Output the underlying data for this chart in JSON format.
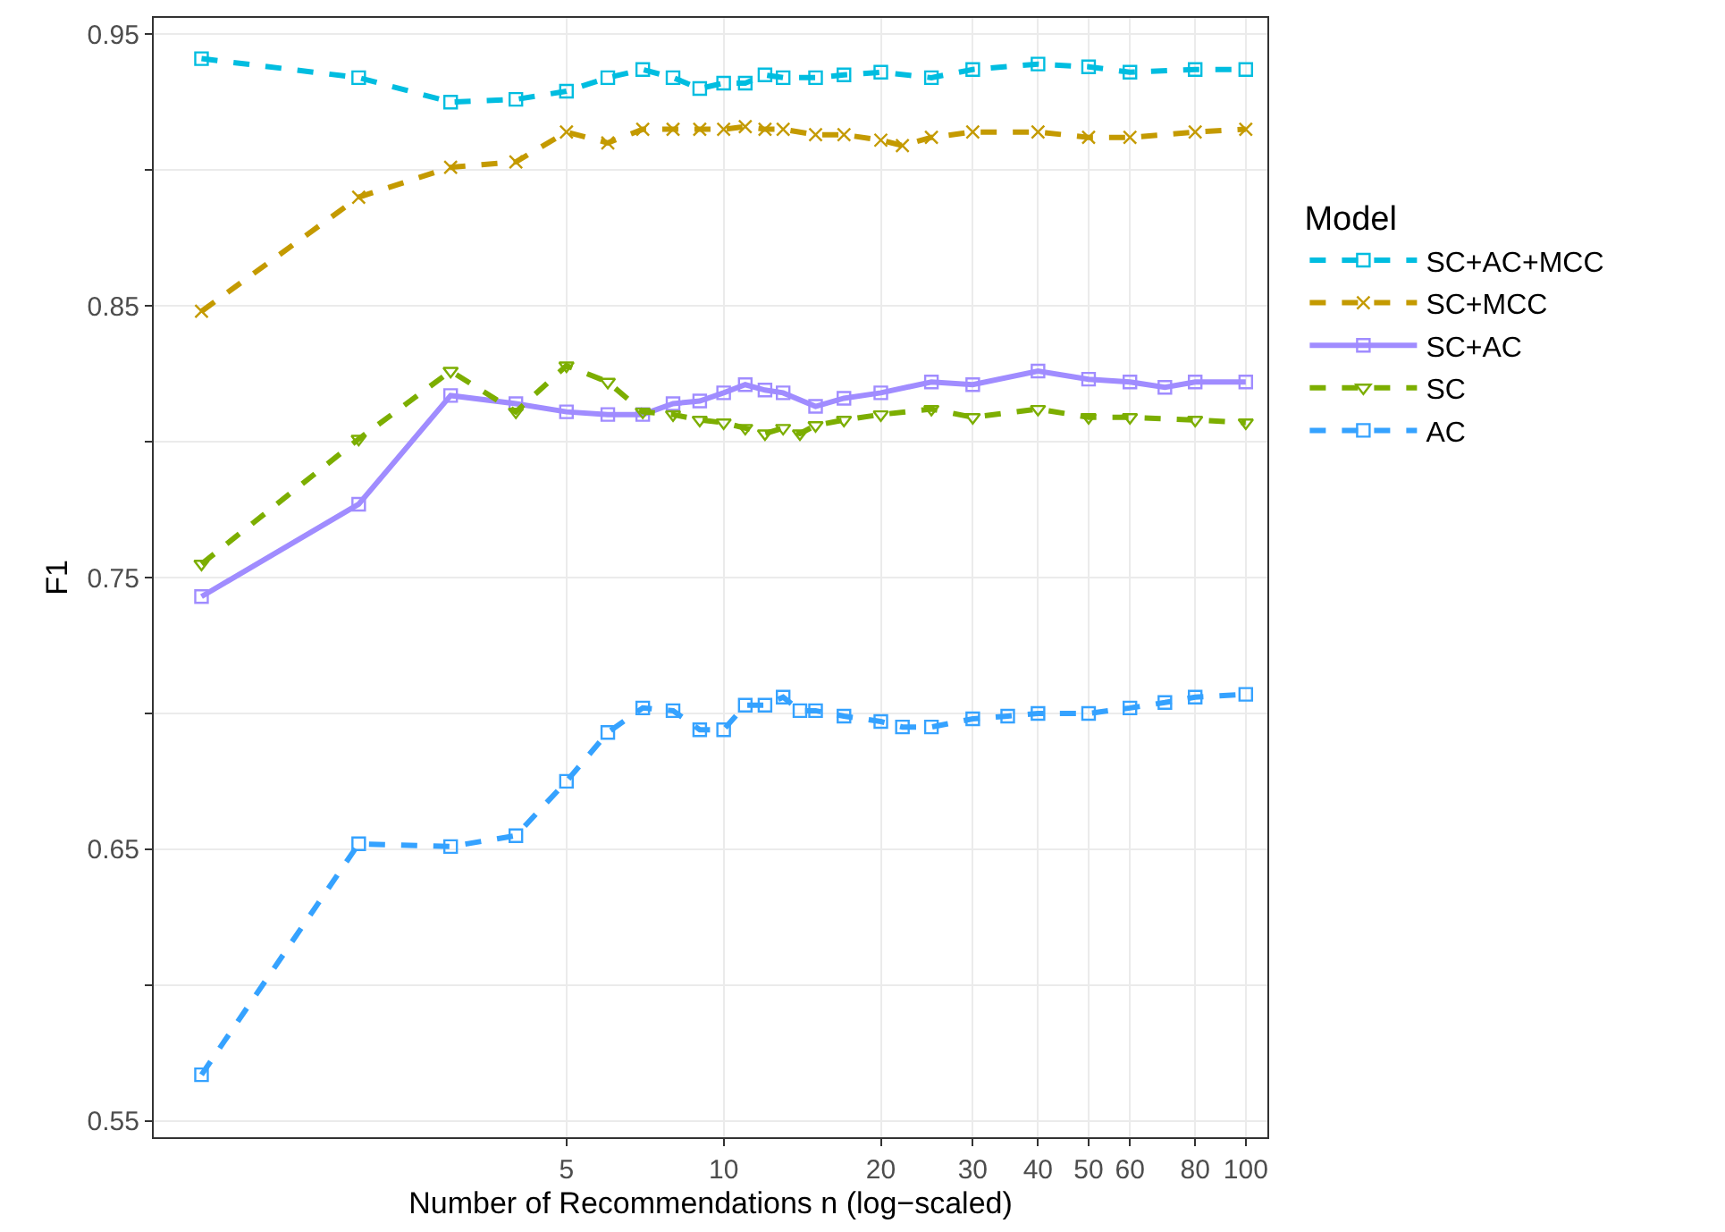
{
  "chart_data": {
    "type": "line",
    "xlabel": "Number of Recommendations n (log−scaled)",
    "ylabel": "F1",
    "legend_title": "Model",
    "legend": "right",
    "grid": true,
    "log": "x",
    "xlim": [
      0.81,
      110
    ],
    "xticks": [
      5,
      10,
      20,
      30,
      40,
      50,
      60,
      80,
      100
    ],
    "ylim": [
      0.544,
      0.956
    ],
    "yticks": [
      0.55,
      {
        "value": 0.6,
        "label": null
      },
      0.65,
      {
        "value": 0.7,
        "label": null
      },
      0.75,
      {
        "value": 0.8,
        "label": null
      },
      0.85,
      {
        "value": 0.9,
        "label": null
      },
      0.95
    ],
    "series": [
      {
        "name": "SC+AC+MCC",
        "color": "#00bde0",
        "marker": "square",
        "line_style": "dashed",
        "x": [
          1,
          2,
          3,
          4,
          5,
          6,
          7,
          8,
          9,
          10,
          11,
          12,
          13,
          15,
          17,
          20,
          25,
          30,
          40,
          50,
          60,
          80,
          100
        ],
        "values": [
          0.941,
          0.934,
          0.925,
          0.926,
          0.929,
          0.934,
          0.937,
          0.934,
          0.93,
          0.932,
          0.932,
          0.935,
          0.934,
          0.934,
          0.935,
          0.936,
          0.934,
          0.937,
          0.939,
          0.938,
          0.936,
          0.937,
          0.937
        ]
      },
      {
        "name": "SC+MCC",
        "color": "#c49a00",
        "marker": "cross",
        "line_style": "dashed",
        "x": [
          1,
          2,
          3,
          4,
          5,
          6,
          7,
          8,
          9,
          10,
          11,
          12,
          13,
          15,
          17,
          20,
          22,
          25,
          30,
          40,
          50,
          60,
          80,
          100
        ],
        "values": [
          0.848,
          0.89,
          0.901,
          0.903,
          0.914,
          0.91,
          0.915,
          0.915,
          0.915,
          0.915,
          0.916,
          0.915,
          0.915,
          0.913,
          0.913,
          0.911,
          0.909,
          0.912,
          0.914,
          0.914,
          0.912,
          0.912,
          0.914,
          0.915
        ]
      },
      {
        "name": "SC+AC",
        "color": "#a08cff",
        "marker": "square",
        "line_style": "solid",
        "x": [
          1,
          2,
          3,
          4,
          5,
          6,
          7,
          8,
          9,
          10,
          11,
          12,
          13,
          15,
          17,
          20,
          25,
          30,
          40,
          50,
          60,
          70,
          80,
          100
        ],
        "values": [
          0.743,
          0.777,
          0.817,
          0.814,
          0.811,
          0.81,
          0.81,
          0.814,
          0.815,
          0.818,
          0.821,
          0.819,
          0.818,
          0.813,
          0.816,
          0.818,
          0.822,
          0.821,
          0.826,
          0.823,
          0.822,
          0.82,
          0.822,
          0.822
        ]
      },
      {
        "name": "SC",
        "color": "#7cae00",
        "marker": "triangle",
        "line_style": "dashed",
        "x": [
          1,
          2,
          3,
          4,
          5,
          6,
          7,
          8,
          9,
          10,
          11,
          12,
          13,
          14,
          15,
          17,
          20,
          25,
          30,
          40,
          50,
          60,
          80,
          100
        ],
        "values": [
          0.755,
          0.801,
          0.826,
          0.811,
          0.828,
          0.822,
          0.811,
          0.81,
          0.808,
          0.807,
          0.805,
          0.803,
          0.805,
          0.803,
          0.806,
          0.808,
          0.81,
          0.812,
          0.809,
          0.812,
          0.809,
          0.809,
          0.808,
          0.807
        ]
      },
      {
        "name": "AC",
        "color": "#35a2ff",
        "marker": "square",
        "line_style": "dashed",
        "x": [
          1,
          2,
          3,
          4,
          5,
          6,
          7,
          8,
          9,
          10,
          11,
          12,
          13,
          14,
          15,
          17,
          20,
          22,
          25,
          30,
          35,
          40,
          50,
          60,
          70,
          80,
          100
        ],
        "values": [
          0.567,
          0.652,
          0.651,
          0.655,
          0.675,
          0.693,
          0.702,
          0.701,
          0.694,
          0.694,
          0.703,
          0.703,
          0.706,
          0.701,
          0.701,
          0.699,
          0.697,
          0.695,
          0.695,
          0.698,
          0.699,
          0.7,
          0.7,
          0.702,
          0.704,
          0.706,
          0.707
        ]
      }
    ]
  }
}
